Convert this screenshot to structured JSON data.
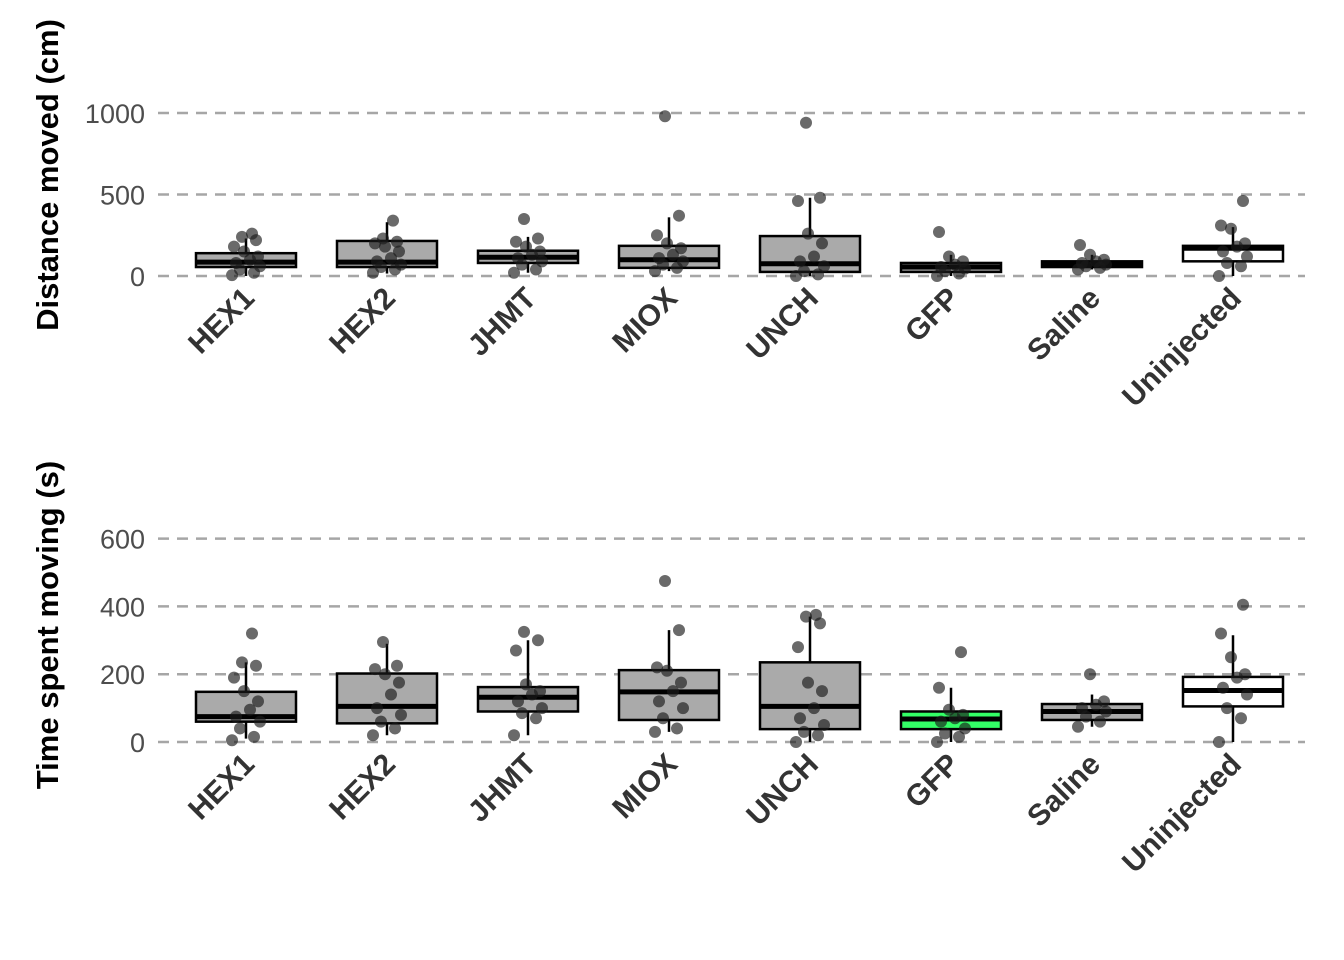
{
  "chart_data": [
    {
      "type": "box",
      "ylabel": "Distance moved (cm)",
      "yticks": [
        0,
        500,
        1000
      ],
      "ylim": [
        -60,
        1500
      ],
      "grid": "horizontal dashed",
      "categories": [
        "HEX1",
        "HEX2",
        "JHMT",
        "MIOX",
        "UNCH",
        "GFP",
        "Saline",
        "Uninjected"
      ],
      "colors": [
        "#aaaaaa",
        "#aaaaaa",
        "#aaaaaa",
        "#aaaaaa",
        "#aaaaaa",
        "#aaaaaa",
        "#aaaaaa",
        "#ffffff"
      ],
      "boxes": [
        {
          "q1": 55,
          "median": 85,
          "q3": 140,
          "whisker_low": 0,
          "whisker_high": 230
        },
        {
          "q1": 55,
          "median": 85,
          "q3": 215,
          "whisker_low": 15,
          "whisker_high": 330
        },
        {
          "q1": 80,
          "median": 115,
          "q3": 155,
          "whisker_low": 20,
          "whisker_high": 240
        },
        {
          "q1": 50,
          "median": 100,
          "q3": 185,
          "whisker_low": 30,
          "whisker_high": 360
        },
        {
          "q1": 25,
          "median": 75,
          "q3": 245,
          "whisker_low": 0,
          "whisker_high": 480
        },
        {
          "q1": 25,
          "median": 55,
          "q3": 80,
          "whisker_low": 0,
          "whisker_high": 130
        },
        {
          "q1": 55,
          "median": 75,
          "q3": 90,
          "whisker_low": 40,
          "whisker_high": 130
        },
        {
          "q1": 90,
          "median": 170,
          "q3": 185,
          "whisker_low": 0,
          "whisker_high": 300
        }
      ],
      "points": [
        [
          5,
          20,
          40,
          60,
          80,
          100,
          120,
          150,
          180,
          220,
          240,
          260
        ],
        [
          20,
          40,
          55,
          70,
          90,
          110,
          150,
          180,
          200,
          210,
          230,
          340
        ],
        [
          20,
          40,
          70,
          90,
          110,
          130,
          150,
          180,
          210,
          230,
          350
        ],
        [
          30,
          50,
          70,
          90,
          110,
          130,
          170,
          200,
          250,
          370,
          980
        ],
        [
          0,
          10,
          30,
          60,
          90,
          120,
          200,
          260,
          460,
          480,
          940
        ],
        [
          0,
          15,
          30,
          45,
          55,
          70,
          90,
          120,
          270
        ],
        [
          40,
          50,
          60,
          70,
          80,
          90,
          100,
          130,
          190
        ],
        [
          0,
          60,
          80,
          120,
          150,
          180,
          200,
          290,
          310,
          460
        ]
      ]
    },
    {
      "type": "box",
      "ylabel": "Time spent moving (s)",
      "yticks": [
        0,
        200,
        400,
        600
      ],
      "ylim": [
        -15,
        715
      ],
      "grid": "horizontal dashed",
      "categories": [
        "HEX1",
        "HEX2",
        "JHMT",
        "MIOX",
        "UNCH",
        "GFP",
        "Saline",
        "Uninjected"
      ],
      "colors": [
        "#aaaaaa",
        "#aaaaaa",
        "#aaaaaa",
        "#aaaaaa",
        "#aaaaaa",
        "#33ff66",
        "#aaaaaa",
        "#ffffff"
      ],
      "boxes": [
        {
          "q1": 60,
          "median": 75,
          "q3": 148,
          "whisker_low": 10,
          "whisker_high": 235
        },
        {
          "q1": 55,
          "median": 105,
          "q3": 202,
          "whisker_low": 20,
          "whisker_high": 290
        },
        {
          "q1": 90,
          "median": 132,
          "q3": 162,
          "whisker_low": 20,
          "whisker_high": 300
        },
        {
          "q1": 65,
          "median": 148,
          "q3": 212,
          "whisker_low": 30,
          "whisker_high": 330
        },
        {
          "q1": 38,
          "median": 105,
          "q3": 235,
          "whisker_low": 0,
          "whisker_high": 370
        },
        {
          "q1": 38,
          "median": 68,
          "q3": 90,
          "whisker_low": 0,
          "whisker_high": 160
        },
        {
          "q1": 65,
          "median": 90,
          "q3": 112,
          "whisker_low": 45,
          "whisker_high": 140
        },
        {
          "q1": 105,
          "median": 152,
          "q3": 192,
          "whisker_low": 0,
          "whisker_high": 315
        }
      ],
      "points": [
        [
          5,
          15,
          40,
          60,
          75,
          95,
          120,
          150,
          190,
          225,
          235,
          320
        ],
        [
          20,
          40,
          60,
          80,
          100,
          140,
          175,
          200,
          215,
          225,
          295
        ],
        [
          20,
          70,
          85,
          100,
          120,
          140,
          150,
          170,
          270,
          300,
          325
        ],
        [
          30,
          40,
          70,
          100,
          120,
          150,
          175,
          210,
          220,
          330,
          475
        ],
        [
          0,
          20,
          30,
          50,
          70,
          100,
          150,
          175,
          280,
          350,
          370,
          375
        ],
        [
          0,
          15,
          25,
          40,
          60,
          70,
          80,
          95,
          160,
          265
        ],
        [
          45,
          60,
          75,
          90,
          100,
          110,
          120,
          200
        ],
        [
          0,
          70,
          100,
          140,
          160,
          190,
          200,
          250,
          320,
          405
        ]
      ]
    }
  ]
}
